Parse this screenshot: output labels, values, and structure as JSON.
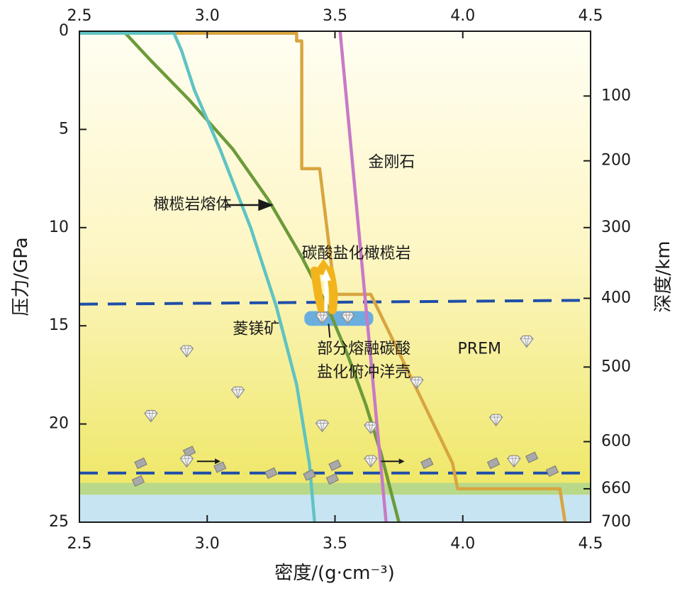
{
  "chart_data": {
    "type": "line",
    "title": "",
    "xlabel": "密度/(g·cm⁻³)",
    "ylabel": "压力/GPa",
    "y2label": "深度/km",
    "xlim": [
      2.5,
      4.5
    ],
    "ylim": [
      25,
      0
    ],
    "x_ticks": [
      "2.5",
      "3.0",
      "3.5",
      "4.0",
      "4.5"
    ],
    "x_tick_values": [
      2.5,
      3.0,
      3.5,
      4.0,
      4.5
    ],
    "y_ticks": [
      "0",
      "5",
      "10",
      "15",
      "20",
      "25"
    ],
    "y_tick_values": [
      0,
      5,
      10,
      15,
      20,
      25
    ],
    "y2_ticks": [
      {
        "label": "100",
        "pressure": 3.3
      },
      {
        "label": "200",
        "pressure": 6.6
      },
      {
        "label": "300",
        "pressure": 10.0
      },
      {
        "label": "400",
        "pressure": 13.6
      },
      {
        "label": "500",
        "pressure": 17.1
      },
      {
        "label": "600",
        "pressure": 20.9
      },
      {
        "label": "660",
        "pressure": 23.3
      },
      {
        "label": "700",
        "pressure": 25.0
      }
    ],
    "grid": false,
    "background": {
      "gradient_top": "#fffef2",
      "gradient_mid": "#fdf6c4",
      "gradient_bottom": "#ece55a",
      "green_band": {
        "from": 23.0,
        "to": 23.6,
        "color": "#b9d98a"
      },
      "blue_band": {
        "from": 23.6,
        "to": 25.0,
        "color": "#c7e4f2"
      }
    },
    "dashed_lines": [
      {
        "name": "410-discontinuity",
        "from": [
          2.5,
          13.9
        ],
        "to": [
          4.5,
          13.7
        ],
        "color": "#1f4ea8"
      },
      {
        "name": "660-discontinuity",
        "from": [
          2.5,
          22.5
        ],
        "to": [
          4.5,
          22.5
        ],
        "color": "#1f4ea8"
      }
    ],
    "series": [
      {
        "id": "prem",
        "color": "#d8a540",
        "points": [
          [
            2.5,
            0.1
          ],
          [
            3.35,
            0.1
          ],
          [
            3.35,
            0.5
          ],
          [
            3.37,
            0.5
          ],
          [
            3.37,
            7.0
          ],
          [
            3.44,
            7.0
          ],
          [
            3.5,
            13.4
          ],
          [
            3.64,
            13.4
          ],
          [
            3.96,
            22.0
          ],
          [
            3.98,
            23.3
          ],
          [
            4.38,
            23.3
          ],
          [
            4.4,
            25.0
          ]
        ]
      },
      {
        "id": "peridotite-melt",
        "color": "#6c9a3a",
        "points": [
          [
            2.5,
            0.1
          ],
          [
            2.68,
            0.1
          ],
          [
            2.78,
            1.5
          ],
          [
            2.93,
            3.5
          ],
          [
            3.1,
            6.0
          ],
          [
            3.24,
            8.6
          ],
          [
            3.37,
            11.5
          ],
          [
            3.47,
            14.0
          ],
          [
            3.55,
            16.5
          ],
          [
            3.62,
            19.0
          ],
          [
            3.68,
            21.5
          ],
          [
            3.75,
            25.0
          ]
        ]
      },
      {
        "id": "magnesite",
        "color": "#5fc3c3",
        "points": [
          [
            2.5,
            0.1
          ],
          [
            2.87,
            0.1
          ],
          [
            2.9,
            1.0
          ],
          [
            2.95,
            3.0
          ],
          [
            3.05,
            6.0
          ],
          [
            3.17,
            10.0
          ],
          [
            3.27,
            14.0
          ],
          [
            3.35,
            18.0
          ],
          [
            3.4,
            22.0
          ],
          [
            3.42,
            25.0
          ]
        ]
      },
      {
        "id": "diamond",
        "color": "#c77ac7",
        "points": [
          [
            3.52,
            0.0
          ],
          [
            3.7,
            25.0
          ]
        ]
      }
    ],
    "annotations": [
      {
        "text": "金刚石",
        "x": 3.63,
        "y": 6.7
      },
      {
        "text": "橄榄岩熔体",
        "x": 2.79,
        "y": 8.85
      },
      {
        "text": "碳酸盐化橄榄岩",
        "x": 3.37,
        "y": 11.35
      },
      {
        "text": "菱镁矿",
        "x": 3.1,
        "y": 15.2
      },
      {
        "text": "部分熔融碳酸",
        "x": 3.43,
        "y": 16.2
      },
      {
        "text": "盐化俯冲洋壳",
        "x": 3.43,
        "y": 17.4
      },
      {
        "text": "PREM",
        "x": 3.98,
        "y": 16.2
      }
    ],
    "diamonds": [
      [
        2.92,
        16.3
      ],
      [
        3.12,
        18.4
      ],
      [
        2.78,
        19.6
      ],
      [
        3.45,
        20.1
      ],
      [
        3.64,
        20.2
      ],
      [
        3.82,
        17.9
      ],
      [
        4.13,
        19.8
      ],
      [
        4.25,
        15.8
      ],
      [
        2.92,
        21.9
      ],
      [
        3.64,
        21.9
      ],
      [
        4.2,
        21.9
      ],
      [
        3.45,
        14.6
      ],
      [
        3.55,
        14.6
      ]
    ],
    "carbonate_box": {
      "x_from": 3.38,
      "x_to": 3.65,
      "y_from": 14.25,
      "y_to": 15.0,
      "color": "#6aaee0"
    },
    "color_notes": {
      "arrow": "#1a1a1a",
      "plume": "#f2b41c"
    }
  }
}
